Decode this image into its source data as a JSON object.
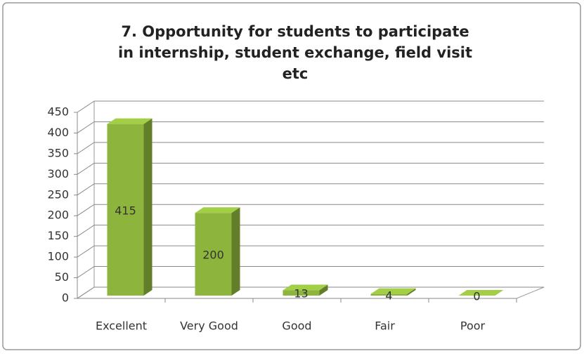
{
  "chart_data": {
    "type": "bar",
    "title": "7. Opportunity for students to participate in internship, student exchange, field visit etc",
    "categories": [
      "Excellent",
      "Very Good",
      "Good",
      "Fair",
      "Poor"
    ],
    "values": [
      415,
      200,
      13,
      4,
      0
    ],
    "color": "#8db43c",
    "ylim": [
      0,
      450
    ],
    "yticks": [
      0,
      50,
      100,
      150,
      200,
      250,
      300,
      350,
      400,
      450
    ],
    "grid": true
  }
}
